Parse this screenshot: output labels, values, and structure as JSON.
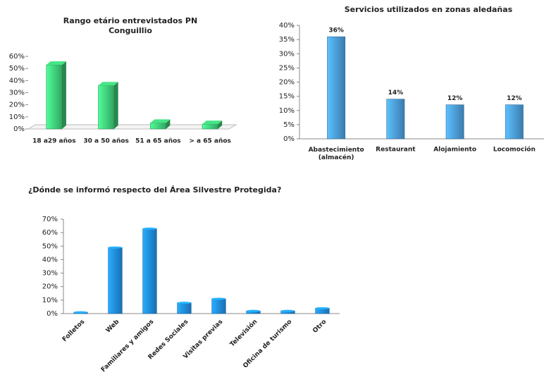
{
  "chart_data": [
    {
      "type": "bar",
      "title": "Rango etário entrevistados PN Conguillio",
      "categories": [
        "18 a29 años",
        "30 a 50 años",
        "51 a 65 años",
        "> a 65 años"
      ],
      "values": [
        53,
        36,
        5,
        4
      ],
      "color": "#3fd07a",
      "ylim": [
        0,
        60
      ],
      "yticks": [
        {
          "value": 0,
          "label": "0%"
        },
        {
          "value": 10,
          "label": "10%"
        },
        {
          "value": 20,
          "label": "20%"
        },
        {
          "value": 30,
          "label": "30%"
        },
        {
          "value": 40,
          "label": "40%"
        },
        {
          "value": 50,
          "label": "50%"
        },
        {
          "value": 60,
          "label": "60%"
        }
      ]
    },
    {
      "type": "bar",
      "title": "Servicios utilizados en zonas aledañas",
      "categories": [
        "Abastecimiento (almacén)",
        "Restaurant",
        "Alojamiento",
        "Locomoción"
      ],
      "values": [
        36,
        14,
        12,
        12
      ],
      "value_labels": [
        "36%",
        "14%",
        "12%",
        "12%"
      ],
      "color": "#4a9ad8",
      "ylim": [
        0,
        40
      ],
      "yticks": [
        {
          "value": 0,
          "label": "0%"
        },
        {
          "value": 5,
          "label": "5%"
        },
        {
          "value": 10,
          "label": "10%"
        },
        {
          "value": 15,
          "label": "15%"
        },
        {
          "value": 20,
          "label": "20%"
        },
        {
          "value": 25,
          "label": "25%"
        },
        {
          "value": 30,
          "label": "30%"
        },
        {
          "value": 35,
          "label": "35%"
        },
        {
          "value": 40,
          "label": "40%"
        }
      ]
    },
    {
      "type": "bar",
      "title": "¿Dónde se informó respecto del Área Silvestre Protegida?",
      "categories": [
        "Folletos",
        "Web",
        "Familiares y amigos",
        "Redes Sociales",
        "Visitas previas",
        "Televisión",
        "Oficina de turismo",
        "Otro"
      ],
      "values": [
        1,
        49,
        63,
        8,
        11,
        2,
        2,
        4
      ],
      "color": "#1f8ae0",
      "ylim": [
        0,
        70
      ],
      "yticks": [
        {
          "value": 0,
          "label": "0%"
        },
        {
          "value": 10,
          "label": "10%"
        },
        {
          "value": 20,
          "label": "20%"
        },
        {
          "value": 30,
          "label": "30%"
        },
        {
          "value": 40,
          "label": "40%"
        },
        {
          "value": 50,
          "label": "50%"
        },
        {
          "value": 60,
          "label": "60%"
        },
        {
          "value": 70,
          "label": "70%"
        }
      ]
    }
  ]
}
